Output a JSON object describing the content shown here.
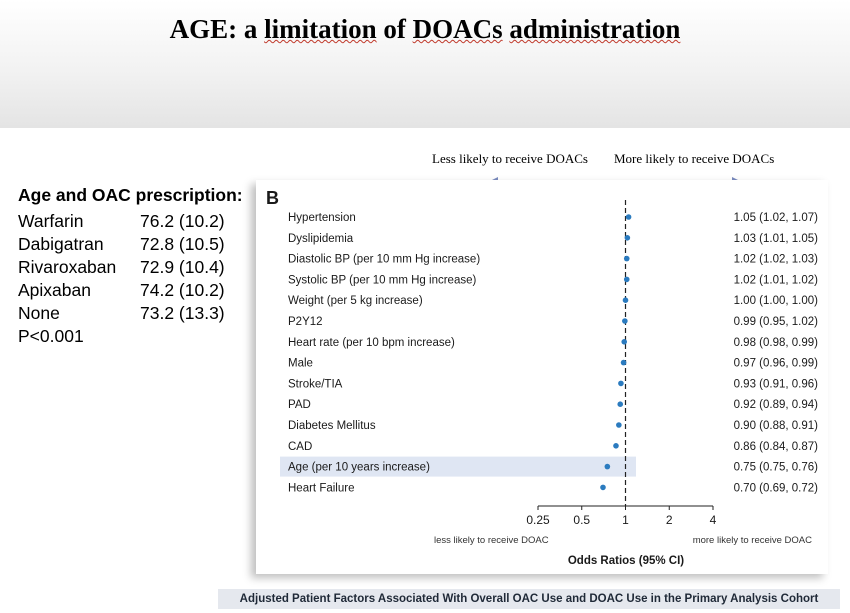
{
  "slide": {
    "title_prefix": "AGE: a",
    "title_word_1": "limitation",
    "title_mid": "of",
    "title_word_2": "DOACs",
    "title_suffix": "administration",
    "direction_left": "Less likely to receive DOACs",
    "direction_right": "More likely to receive DOACs",
    "caption": "Adjusted Patient Factors Associated With Overall OAC Use and DOAC Use in the Primary Analysis Cohort"
  },
  "age_table": {
    "heading": "Age and OAC prescription:",
    "rows": [
      {
        "drug": "Warfarin",
        "value": "76.2 (10.2)"
      },
      {
        "drug": "Dabigatran",
        "value": "72.8 (10.5)"
      },
      {
        "drug": "Rivaroxaban",
        "value": "72.9 (10.4)"
      },
      {
        "drug": "Apixaban",
        "value": "74.2 (10.2)"
      },
      {
        "drug": "None",
        "value": "73.2 (13.3)"
      }
    ],
    "p_value": "P<0.001"
  },
  "chart_data": {
    "type": "scatter",
    "panel_label": "B",
    "xlabel": "Odds Ratios (95% CI)",
    "x_scale": "log",
    "xlim": [
      0.25,
      4
    ],
    "x_ticks": [
      "0.25",
      "0.5",
      "1",
      "2",
      "4"
    ],
    "reference_line": 1,
    "left_annotation": "less likely to receive DOAC",
    "right_annotation": "more likely to receive DOAC",
    "highlighted_row": "Age (per 10 years increase)",
    "marker_color": "#2b7bbf",
    "highlight_color": "#dfe6f3",
    "rows": [
      {
        "label": "Hypertension",
        "or": 1.05,
        "lo": 1.02,
        "hi": 1.07,
        "text": "1.05 (1.02, 1.07)"
      },
      {
        "label": "Dyslipidemia",
        "or": 1.03,
        "lo": 1.01,
        "hi": 1.05,
        "text": "1.03 (1.01, 1.05)"
      },
      {
        "label": "Diastolic BP (per 10 mm Hg increase)",
        "or": 1.02,
        "lo": 1.02,
        "hi": 1.03,
        "text": "1.02 (1.02, 1.03)"
      },
      {
        "label": "Systolic BP (per 10 mm Hg increase)",
        "or": 1.02,
        "lo": 1.01,
        "hi": 1.02,
        "text": "1.02 (1.01, 1.02)"
      },
      {
        "label": "Weight (per 5 kg increase)",
        "or": 1.0,
        "lo": 1.0,
        "hi": 1.0,
        "text": "1.00 (1.00, 1.00)"
      },
      {
        "label": "P2Y12",
        "or": 0.99,
        "lo": 0.95,
        "hi": 1.02,
        "text": "0.99 (0.95, 1.02)"
      },
      {
        "label": "Heart rate (per 10 bpm increase)",
        "or": 0.98,
        "lo": 0.98,
        "hi": 0.99,
        "text": "0.98 (0.98, 0.99)"
      },
      {
        "label": "Male",
        "or": 0.97,
        "lo": 0.96,
        "hi": 0.99,
        "text": "0.97 (0.96, 0.99)"
      },
      {
        "label": "Stroke/TIA",
        "or": 0.93,
        "lo": 0.91,
        "hi": 0.96,
        "text": "0.93 (0.91, 0.96)"
      },
      {
        "label": "PAD",
        "or": 0.92,
        "lo": 0.89,
        "hi": 0.94,
        "text": "0.92 (0.89, 0.94)"
      },
      {
        "label": "Diabetes Mellitus",
        "or": 0.9,
        "lo": 0.88,
        "hi": 0.91,
        "text": "0.90 (0.88, 0.91)"
      },
      {
        "label": "CAD",
        "or": 0.86,
        "lo": 0.84,
        "hi": 0.87,
        "text": "0.86 (0.84, 0.87)"
      },
      {
        "label": "Age (per 10 years increase)",
        "or": 0.75,
        "lo": 0.75,
        "hi": 0.76,
        "text": "0.75 (0.75, 0.76)"
      },
      {
        "label": "Heart Failure",
        "or": 0.7,
        "lo": 0.69,
        "hi": 0.72,
        "text": "0.70 (0.69, 0.72)"
      }
    ]
  }
}
